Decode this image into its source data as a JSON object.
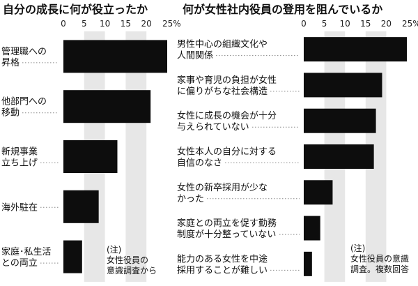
{
  "chart_data": [
    {
      "type": "bar",
      "orientation": "horizontal",
      "title": "自分の成長に何が役立ったか",
      "categories": [
        [
          "管理職への",
          "昇格"
        ],
        [
          "他部門への",
          "移動"
        ],
        [
          "新規事業",
          "立ち上げ"
        ],
        [
          "海外駐在"
        ],
        [
          "家庭･私生活",
          "との両立"
        ]
      ],
      "values": [
        25,
        21,
        13,
        8.5,
        4.5
      ],
      "xlim": [
        0,
        25
      ],
      "ticks": [
        "0",
        "5",
        "10",
        "15",
        "20",
        "25%"
      ],
      "note": [
        "(注)",
        "女性役員の",
        "意識調査から"
      ]
    },
    {
      "type": "bar",
      "orientation": "horizontal",
      "title": "何が女性社内役員の登用を阻んでいるか",
      "categories": [
        [
          "男性中心の組織文化や",
          "人間関係"
        ],
        [
          "家事や育児の負担が女性",
          "に偏りがちな社会構造"
        ],
        [
          "女性に成長の機会が十分",
          "与えられていない"
        ],
        [
          "女性本人の自分に対する",
          "自信のなさ"
        ],
        [
          "女性の新卒採用が少な",
          "かった"
        ],
        [
          "家庭との両立を促す勤務",
          "制度が十分整っていない"
        ],
        [
          "能力のある女性を中途",
          "採用することが難しい"
        ]
      ],
      "values": [
        25,
        19,
        17.5,
        17,
        7,
        4,
        2
      ],
      "xlim": [
        0,
        25
      ],
      "ticks": [
        "0",
        "5",
        "10",
        "15",
        "20",
        "25%"
      ],
      "note": [
        "(注)",
        "女性役員の意識",
        "調査。複数回答"
      ]
    }
  ],
  "colors": {
    "bar": "#0d0d0d",
    "band": "#e7e7e7"
  }
}
